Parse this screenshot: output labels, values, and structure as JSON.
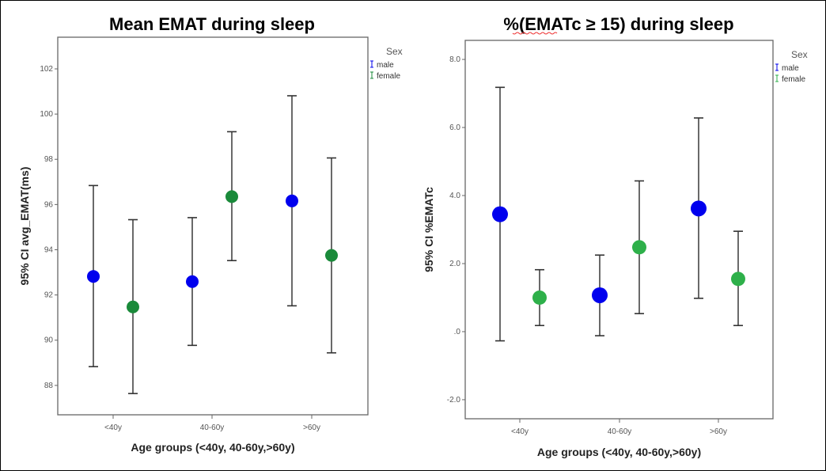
{
  "chart_data": [
    {
      "type": "errorbar",
      "title": "Mean EMAT during sleep",
      "xlabel": "Age groups (<40y, 40-60y,>60y)",
      "ylabel": "95% CI avg_EMAT(ms)",
      "categories": [
        "<40y",
        "40-60y",
        ">60y"
      ],
      "yticks": [
        "88",
        "90",
        "92",
        "94",
        "96",
        "98",
        "100",
        "102"
      ],
      "ytick_values": [
        88,
        90,
        92,
        94,
        96,
        98,
        100,
        102
      ],
      "ylim": [
        86.7,
        103.4
      ],
      "legend": {
        "title": "Sex",
        "position": "top-right"
      },
      "series": [
        {
          "name": "male",
          "color": "#0000ee",
          "mean": [
            92.82,
            92.59,
            96.16
          ],
          "ci_low": [
            88.83,
            89.77,
            91.52
          ],
          "ci_high": [
            96.84,
            95.42,
            100.81
          ]
        },
        {
          "name": "female",
          "color": "#1a8a3a",
          "mean": [
            91.47,
            96.35,
            93.75
          ],
          "ci_low": [
            87.64,
            93.52,
            89.44
          ],
          "ci_high": [
            95.33,
            99.22,
            98.06
          ]
        }
      ]
    },
    {
      "type": "errorbar",
      "title": "%(EMATc ≥ 15) during sleep",
      "xlabel": "Age groups (<40y, 40-60y,>60y)",
      "ylabel": "95% CI %EMATc",
      "categories": [
        "<40y",
        "40-60y",
        ">60y"
      ],
      "yticks": [
        "-2.0",
        ".0",
        "2.0",
        "4.0",
        "6.0",
        "8.0"
      ],
      "ytick_values": [
        -2,
        0,
        2,
        4,
        6,
        8
      ],
      "ylim": [
        -2.56,
        8.56
      ],
      "legend": {
        "title": "Sex",
        "position": "top-right"
      },
      "series": [
        {
          "name": "male",
          "color": "#0000ee",
          "mean": [
            3.45,
            1.07,
            3.62
          ],
          "ci_low": [
            -0.27,
            -0.12,
            0.98
          ],
          "ci_high": [
            7.18,
            2.25,
            6.28
          ]
        },
        {
          "name": "female",
          "color": "#2eb04a",
          "mean": [
            1.0,
            2.48,
            1.55
          ],
          "ci_low": [
            0.18,
            0.53,
            0.18
          ],
          "ci_high": [
            1.82,
            4.43,
            2.95
          ]
        }
      ]
    }
  ]
}
